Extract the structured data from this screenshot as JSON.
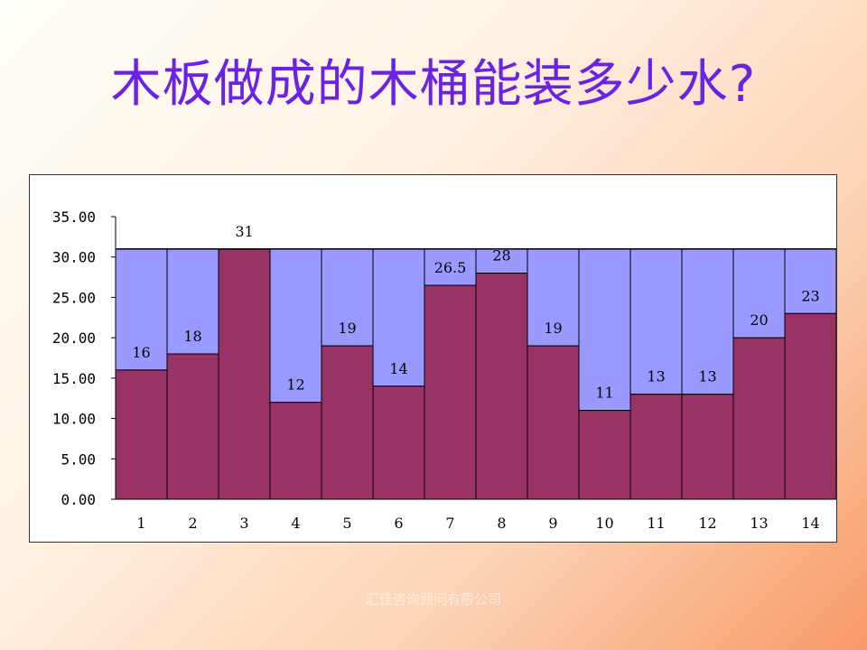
{
  "slide": {
    "title": "木板做成的木桶能装多少水?",
    "watermark": "汇佳咨询顾问有限公司"
  },
  "colors": {
    "board": "#993366",
    "empty": "#9999ff",
    "title": "#6b22e6"
  },
  "chart_data": {
    "type": "bar",
    "stacked": true,
    "categories": [
      "1",
      "2",
      "3",
      "4",
      "5",
      "6",
      "7",
      "8",
      "9",
      "10",
      "11",
      "12",
      "13",
      "14"
    ],
    "values": [
      16,
      18,
      31,
      12,
      19,
      14,
      26.5,
      28,
      19,
      11,
      13,
      13,
      20,
      23
    ],
    "value_labels": [
      "16",
      "18",
      "31",
      "12",
      "19",
      "14",
      "26.5",
      "28",
      "19",
      "11",
      "13",
      "13",
      "20",
      "23"
    ],
    "top_level": 31,
    "ylim": [
      0,
      35
    ],
    "yticks": [
      "0.00",
      "5.00",
      "10.00",
      "15.00",
      "20.00",
      "25.00",
      "30.00",
      "35.00"
    ],
    "title": "",
    "xlabel": "",
    "ylabel": "",
    "grid": false,
    "legend": "none"
  }
}
